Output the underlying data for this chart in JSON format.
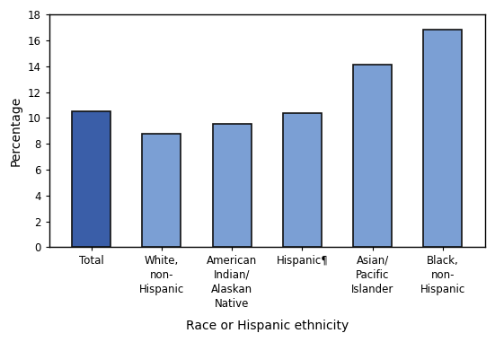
{
  "categories": [
    "Total",
    "White,\nnon-\nHispanic",
    "American\nIndian/\nAlaskan\nNative",
    "Hispanic¶",
    "Asian/\nPacific\nIslander",
    "Black,\nnon-\nHispanic"
  ],
  "values": [
    10.5,
    8.75,
    9.55,
    10.4,
    14.1,
    16.8
  ],
  "bar_colors": [
    "#3a5ea8",
    "#7b9fd4",
    "#7b9fd4",
    "#7b9fd4",
    "#7b9fd4",
    "#7b9fd4"
  ],
  "edge_color": "#111111",
  "ylabel": "Percentage",
  "xlabel": "Race or Hispanic ethnicity",
  "ylim": [
    0,
    18
  ],
  "yticks": [
    0,
    2,
    4,
    6,
    8,
    10,
    12,
    14,
    16,
    18
  ],
  "background_color": "#ffffff",
  "bar_width": 0.55,
  "tick_fontsize": 8.5,
  "label_fontsize": 10,
  "edge_linewidth": 1.2
}
